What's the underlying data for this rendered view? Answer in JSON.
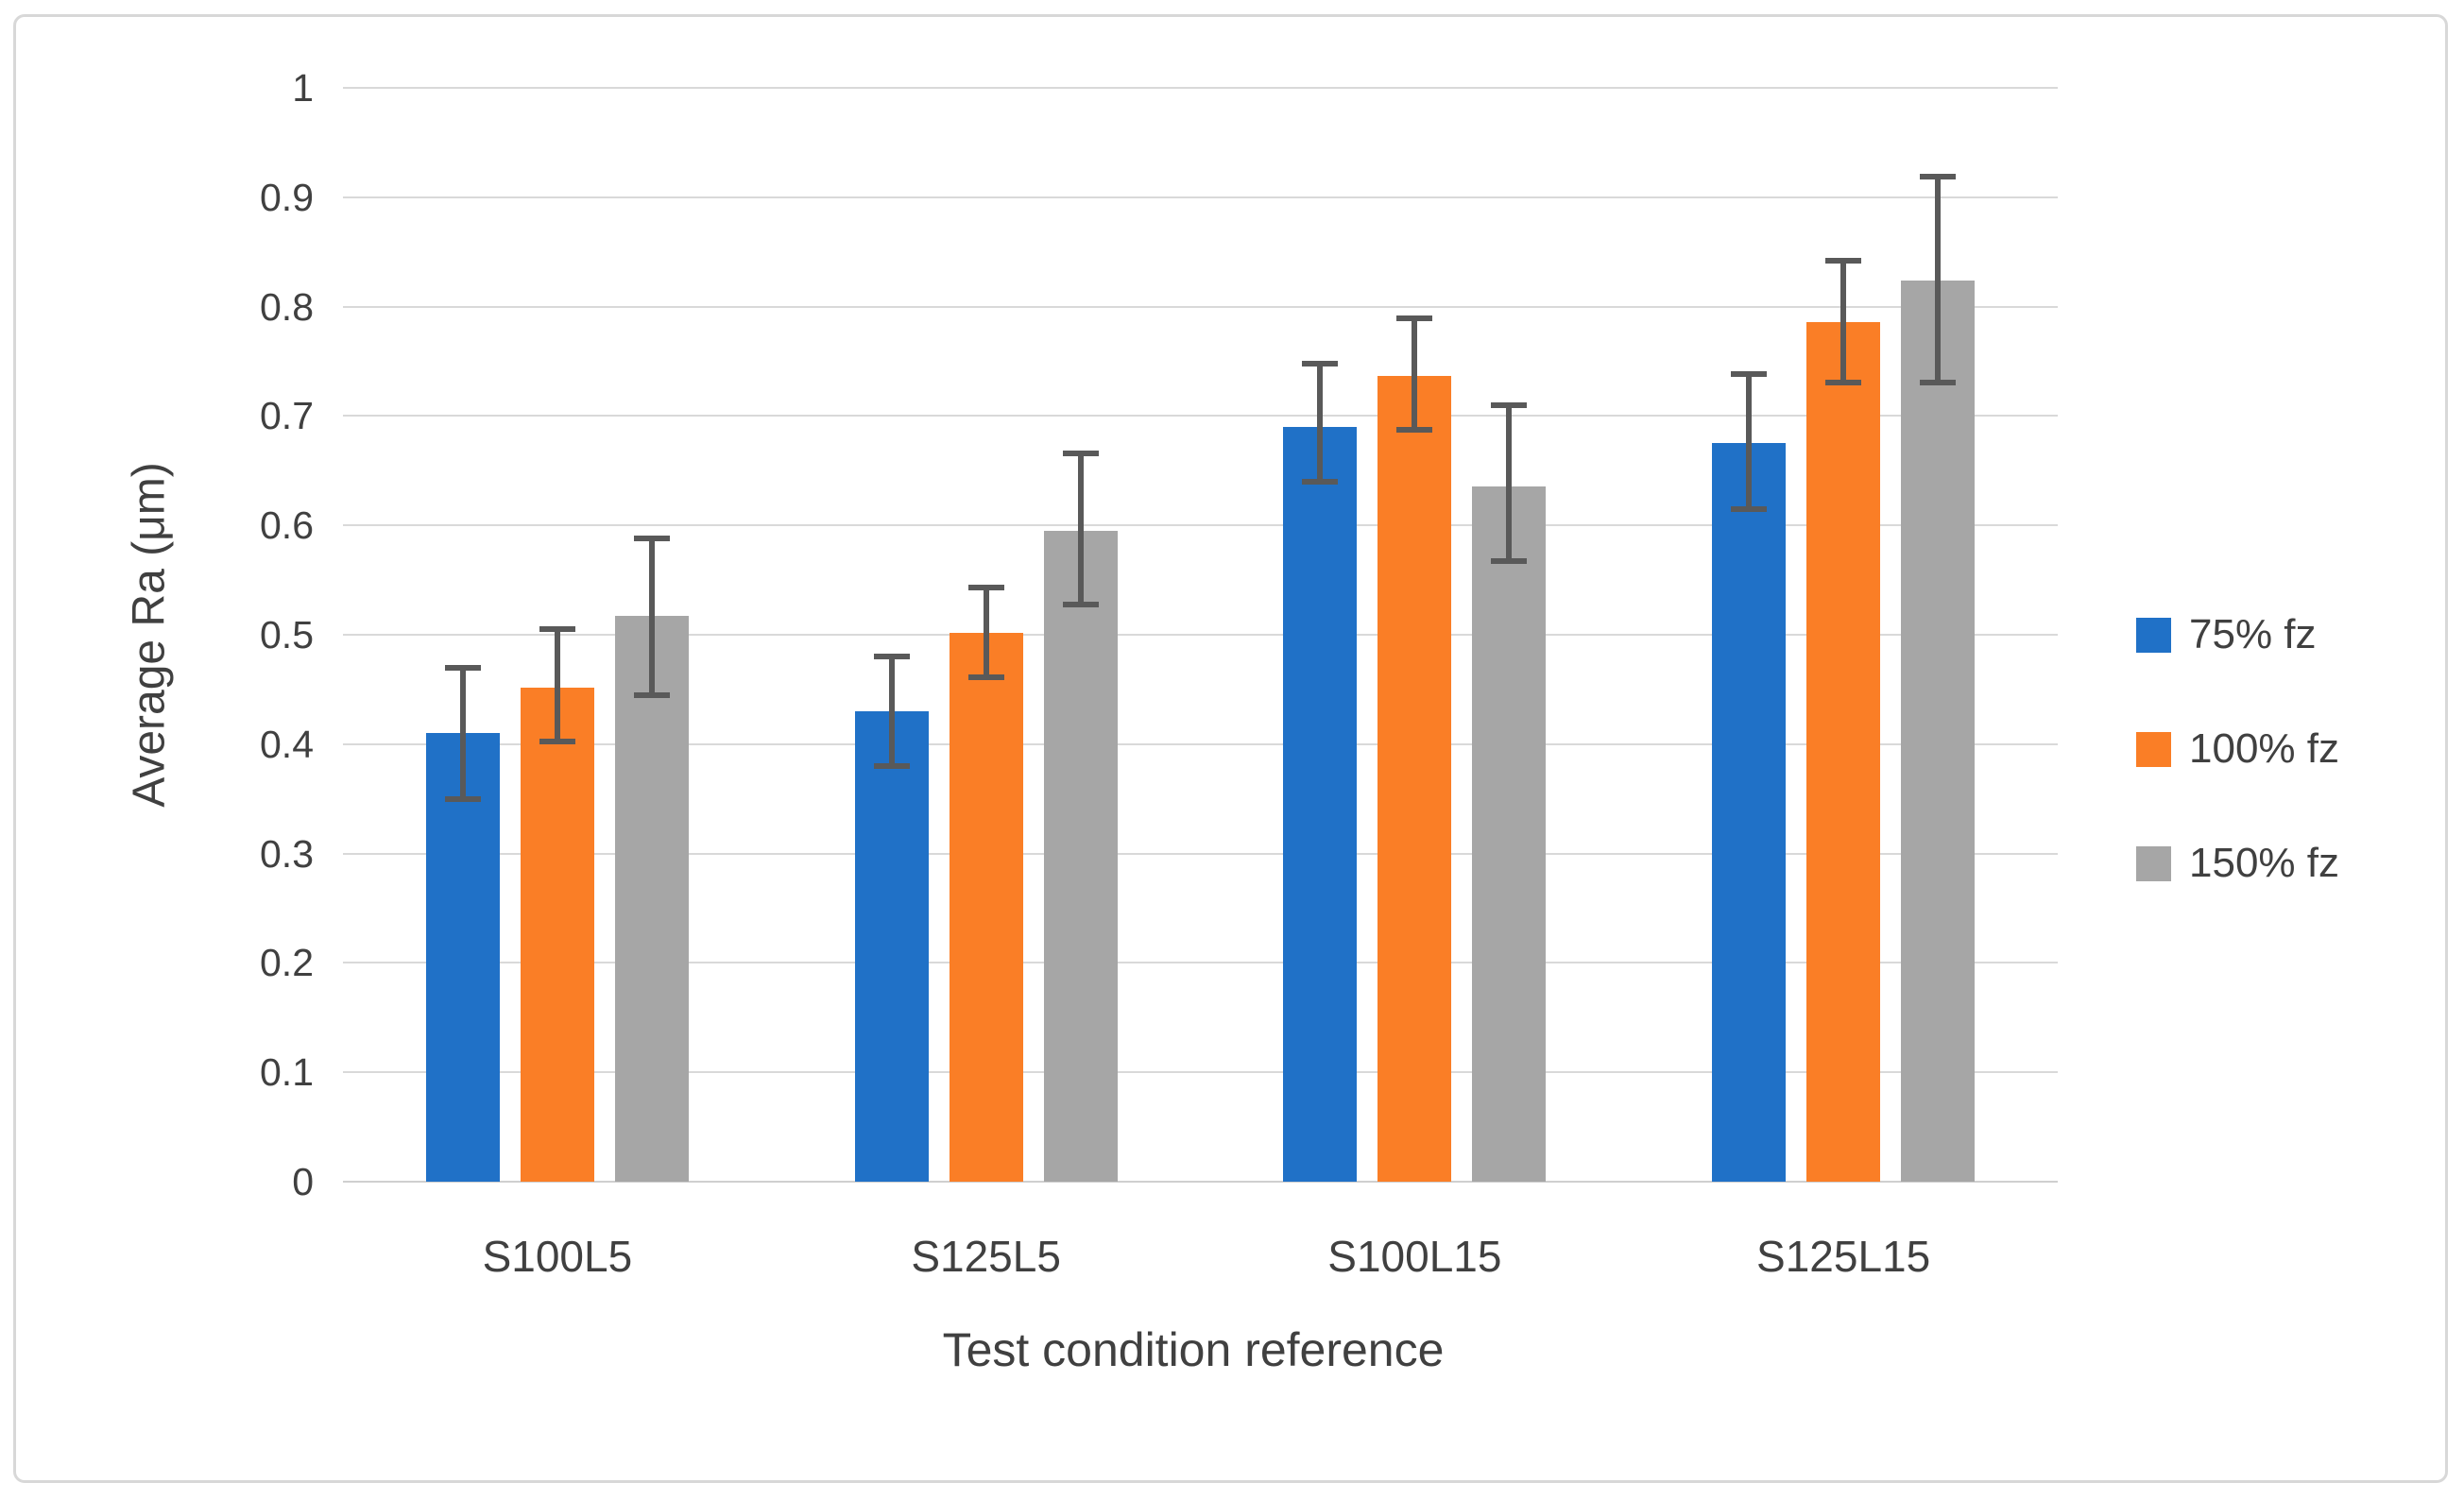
{
  "chart_data": {
    "type": "bar",
    "title": "",
    "xlabel": "Test condition reference",
    "ylabel": "Average Ra (μm)",
    "ylim": [
      0,
      1
    ],
    "ytick_step": 0.1,
    "ytick_labels": [
      "0",
      "0.1",
      "0.2",
      "0.3",
      "0.4",
      "0.5",
      "0.6",
      "0.7",
      "0.8",
      "0.9",
      "1"
    ],
    "grid": true,
    "legend_position": "right",
    "categories": [
      "S100L5",
      "S125L5",
      "S100L15",
      "S125L15"
    ],
    "series": [
      {
        "name": "75% fz",
        "color": "#2071C7",
        "values": [
          0.41,
          0.43,
          0.69,
          0.675
        ],
        "error_low": [
          0.35,
          0.38,
          0.64,
          0.615
        ],
        "error_high": [
          0.47,
          0.48,
          0.748,
          0.738
        ]
      },
      {
        "name": "100% fz",
        "color": "#FA7E26",
        "values": [
          0.452,
          0.502,
          0.737,
          0.786
        ],
        "error_low": [
          0.402,
          0.461,
          0.687,
          0.731
        ],
        "error_high": [
          0.505,
          0.543,
          0.789,
          0.842
        ]
      },
      {
        "name": "150% fz",
        "color": "#A6A6A6",
        "values": [
          0.517,
          0.595,
          0.636,
          0.824
        ],
        "error_low": [
          0.445,
          0.528,
          0.567,
          0.731
        ],
        "error_high": [
          0.588,
          0.666,
          0.71,
          0.919
        ]
      }
    ],
    "error_bar_color": "#595959",
    "gridline_color": "#D9D9D9",
    "text_color": "#404040"
  }
}
